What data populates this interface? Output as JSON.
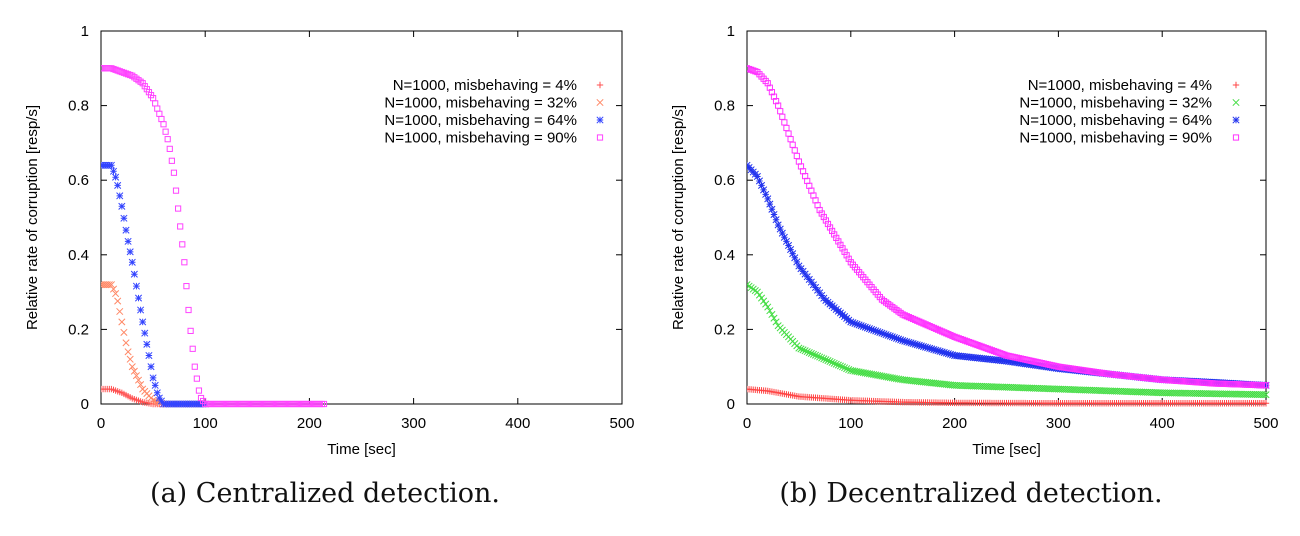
{
  "chart_data": [
    {
      "type": "scatter",
      "caption": "(a)  Centralized detection.",
      "xlabel": "Time [sec]",
      "ylabel": "Relative rate of corruption [resp/s]",
      "xlim": [
        0,
        500
      ],
      "ylim": [
        0,
        1
      ],
      "xticks": [
        "0",
        "100",
        "200",
        "300",
        "400",
        "500"
      ],
      "yticks": [
        "0",
        "0.2",
        "0.4",
        "0.6",
        "0.8",
        "1"
      ],
      "grid": false,
      "legend": "top-right",
      "series": [
        {
          "name": "N=1000, misbehaving = 4%",
          "color": "#ff5050",
          "marker": "plus",
          "x": [
            0,
            10,
            20,
            30,
            40,
            50,
            60
          ],
          "y": [
            0.04,
            0.04,
            0.03,
            0.015,
            0.005,
            0.0,
            0.0
          ]
        },
        {
          "name": "N=1000, misbehaving = 32%",
          "color": "#ff8866",
          "marker": "x",
          "x": [
            0,
            10,
            15,
            20,
            25,
            30,
            40,
            50,
            60,
            80,
            100
          ],
          "y": [
            0.32,
            0.32,
            0.29,
            0.22,
            0.15,
            0.1,
            0.04,
            0.01,
            0.0,
            0.0,
            0.0
          ]
        },
        {
          "name": "N=1000, misbehaving = 64%",
          "color": "#3344ff",
          "marker": "star",
          "x": [
            0,
            10,
            15,
            20,
            25,
            30,
            40,
            50,
            55,
            60,
            80,
            100
          ],
          "y": [
            0.64,
            0.64,
            0.6,
            0.53,
            0.45,
            0.38,
            0.22,
            0.07,
            0.02,
            0.0,
            0.0,
            0.0
          ]
        },
        {
          "name": "N=1000, misbehaving = 90%",
          "color": "#ff44ff",
          "marker": "square",
          "x": [
            0,
            10,
            20,
            30,
            40,
            50,
            60,
            65,
            70,
            75,
            80,
            85,
            90,
            95,
            100,
            150,
            200,
            215
          ],
          "y": [
            0.9,
            0.9,
            0.89,
            0.88,
            0.86,
            0.82,
            0.75,
            0.7,
            0.62,
            0.5,
            0.38,
            0.22,
            0.1,
            0.02,
            0.0,
            0.0,
            0.0,
            0.0
          ]
        }
      ]
    },
    {
      "type": "scatter",
      "caption": "(b)  Decentralized detection.",
      "xlabel": "Time [sec]",
      "ylabel": "Relative rate of corruption [resp/s]",
      "xlim": [
        0,
        500
      ],
      "ylim": [
        0,
        1
      ],
      "xticks": [
        "0",
        "100",
        "200",
        "300",
        "400",
        "500"
      ],
      "yticks": [
        "0",
        "0.2",
        "0.4",
        "0.6",
        "0.8",
        "1"
      ],
      "grid": false,
      "legend": "top-right",
      "series": [
        {
          "name": "N=1000, misbehaving = 4%",
          "color": "#ff4444",
          "marker": "plus",
          "x": [
            0,
            20,
            50,
            100,
            150,
            200,
            300,
            400,
            500
          ],
          "y": [
            0.04,
            0.035,
            0.02,
            0.01,
            0.005,
            0.003,
            0.002,
            0.002,
            0.002
          ]
        },
        {
          "name": "N=1000, misbehaving = 32%",
          "color": "#44dd44",
          "marker": "x",
          "x": [
            0,
            10,
            20,
            30,
            50,
            75,
            100,
            150,
            200,
            300,
            400,
            500
          ],
          "y": [
            0.32,
            0.3,
            0.26,
            0.21,
            0.15,
            0.12,
            0.09,
            0.065,
            0.05,
            0.04,
            0.03,
            0.025
          ]
        },
        {
          "name": "N=1000, misbehaving = 64%",
          "color": "#2233ee",
          "marker": "star",
          "x": [
            0,
            10,
            20,
            30,
            50,
            75,
            100,
            150,
            200,
            250,
            300,
            350,
            400,
            450,
            500
          ],
          "y": [
            0.64,
            0.61,
            0.55,
            0.48,
            0.37,
            0.28,
            0.22,
            0.17,
            0.13,
            0.115,
            0.095,
            0.08,
            0.065,
            0.058,
            0.05
          ]
        },
        {
          "name": "N=1000, misbehaving = 90%",
          "color": "#ff33ff",
          "marker": "square",
          "x": [
            0,
            10,
            20,
            30,
            50,
            70,
            100,
            130,
            150,
            200,
            250,
            300,
            350,
            400,
            450,
            500
          ],
          "y": [
            0.9,
            0.89,
            0.86,
            0.8,
            0.65,
            0.52,
            0.38,
            0.28,
            0.24,
            0.18,
            0.13,
            0.1,
            0.08,
            0.065,
            0.055,
            0.05
          ]
        }
      ]
    }
  ]
}
